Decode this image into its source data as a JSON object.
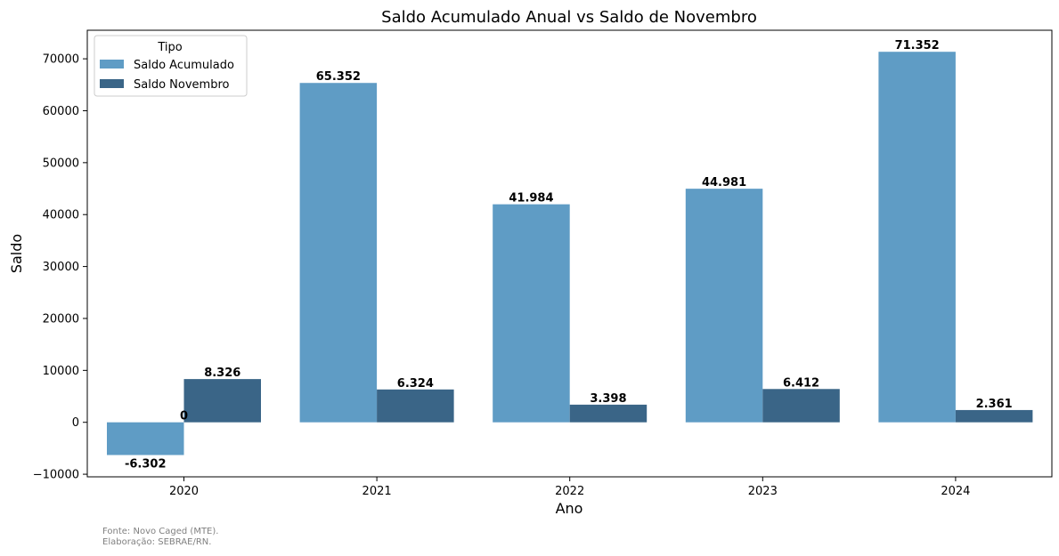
{
  "chart_data": {
    "type": "bar",
    "title": "Saldo Acumulado Anual vs Saldo de Novembro",
    "xlabel": "Ano",
    "ylabel": "Saldo",
    "categories": [
      "2020",
      "2021",
      "2022",
      "2023",
      "2024"
    ],
    "ylim": [
      -10500,
      75500
    ],
    "yticks": [
      -10000,
      0,
      10000,
      20000,
      30000,
      40000,
      50000,
      60000,
      70000
    ],
    "ytick_labels": [
      "−10000",
      "0",
      "10000",
      "20000",
      "30000",
      "40000",
      "50000",
      "60000",
      "70000"
    ],
    "legend": {
      "title": "Tipo",
      "position": "upper-left"
    },
    "series": [
      {
        "name": "Saldo Acumulado",
        "color": "#5f9cc5",
        "values": [
          -6302,
          65352,
          41984,
          44981,
          71352
        ],
        "labels": [
          "-6.302",
          "65.352",
          "41.984",
          "44.981",
          "71.352"
        ]
      },
      {
        "name": "Saldo Novembro",
        "color": "#3a6587",
        "values": [
          8326,
          6324,
          3398,
          6412,
          2361
        ],
        "labels": [
          "8.326",
          "6.324",
          "3.398",
          "6.412",
          "2.361"
        ]
      }
    ],
    "extra_label": "0",
    "grid": false
  },
  "footer": {
    "source": "Fonte: Novo Caged (MTE).",
    "credit": "Elaboração: SEBRAE/RN."
  }
}
